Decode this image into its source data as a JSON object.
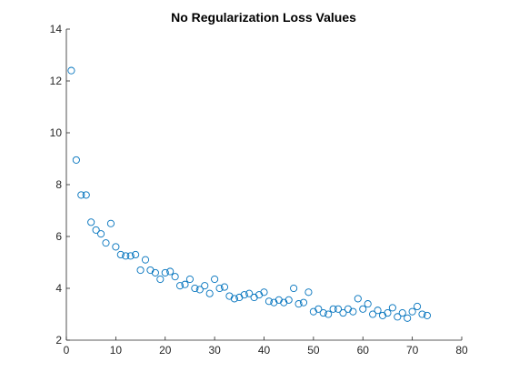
{
  "chart_data": {
    "type": "scatter",
    "title": "No Regularization Loss Values",
    "xlabel": "",
    "ylabel": "",
    "xlim": [
      0,
      80
    ],
    "ylim": [
      2,
      14
    ],
    "xticks": [
      0,
      10,
      20,
      30,
      40,
      50,
      60,
      70,
      80
    ],
    "yticks": [
      2,
      4,
      6,
      8,
      10,
      12,
      14
    ],
    "grid": false,
    "marker": "circle",
    "color": "#0072BD",
    "series": [
      {
        "x": [
          1,
          2,
          3,
          4,
          5,
          6,
          7,
          8,
          9,
          10,
          11,
          12,
          13,
          14,
          15,
          16,
          17,
          18,
          19,
          20,
          21,
          22,
          23,
          24,
          25,
          26,
          27,
          28,
          29,
          30,
          31,
          32,
          33,
          34,
          35,
          36,
          37,
          38,
          39,
          40,
          41,
          42,
          43,
          44,
          45,
          46,
          47,
          48,
          49,
          50,
          51,
          52,
          53,
          54,
          55,
          56,
          57,
          58,
          59,
          60,
          61,
          62,
          63,
          64,
          65,
          66,
          67,
          68,
          69,
          70,
          71,
          72,
          73
        ],
        "y": [
          12.4,
          8.95,
          7.6,
          7.6,
          6.55,
          6.25,
          6.1,
          5.75,
          6.5,
          5.6,
          5.3,
          5.25,
          5.25,
          5.3,
          4.7,
          5.1,
          4.7,
          4.6,
          4.35,
          4.6,
          4.65,
          4.45,
          4.1,
          4.15,
          4.35,
          4.0,
          3.95,
          4.1,
          3.8,
          4.35,
          4.0,
          4.05,
          3.7,
          3.6,
          3.65,
          3.75,
          3.8,
          3.65,
          3.75,
          3.85,
          3.5,
          3.45,
          3.55,
          3.45,
          3.55,
          4.0,
          3.4,
          3.45,
          3.85,
          3.1,
          3.2,
          3.05,
          3.0,
          3.2,
          3.2,
          3.05,
          3.2,
          3.1,
          3.6,
          3.2,
          3.4,
          3.0,
          3.15,
          2.95,
          3.05,
          3.25,
          2.9,
          3.05,
          2.85,
          3.1,
          3.3,
          3.0,
          2.95
        ]
      }
    ]
  }
}
